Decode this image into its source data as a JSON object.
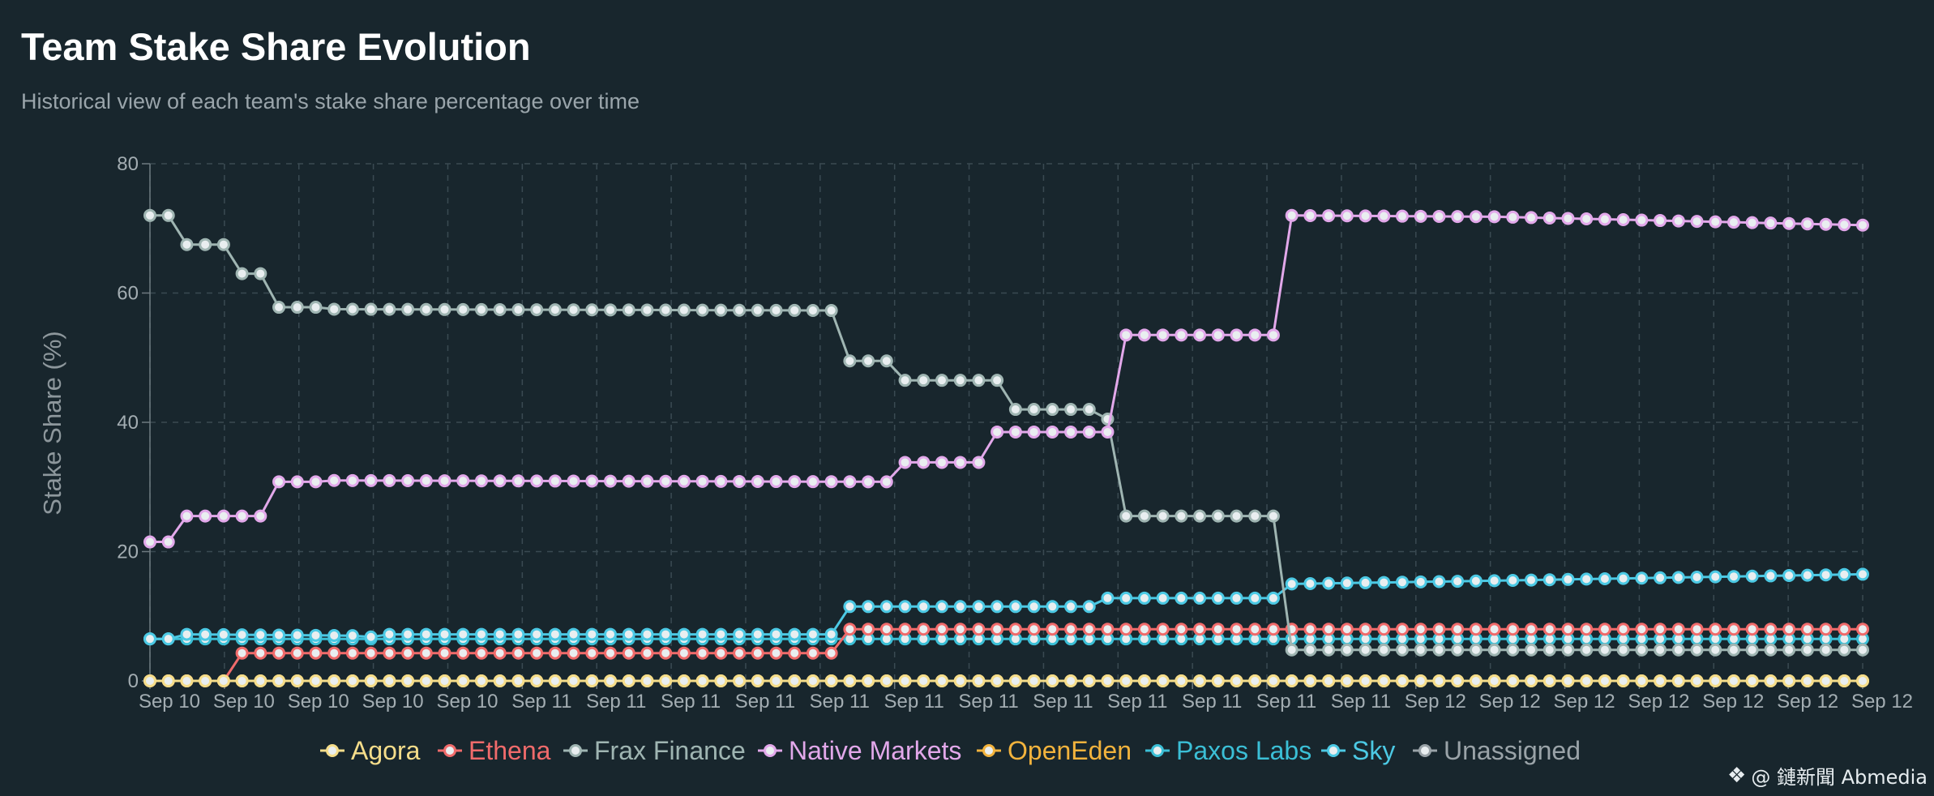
{
  "title": "Team Stake Share Evolution",
  "subtitle": "Historical view of each team's stake share percentage over time",
  "watermark": "@ 鏈新聞 Abmedia",
  "chart_data": {
    "type": "line",
    "ylabel": "Stake Share (%)",
    "xlabel": "",
    "ylim": [
      0,
      80
    ],
    "yticks": [
      0,
      20,
      40,
      60,
      80
    ],
    "x_tick_labels": [
      "Sep 10",
      "Sep 10",
      "Sep 10",
      "Sep 10",
      "Sep 10",
      "Sep 11",
      "Sep 11",
      "Sep 11",
      "Sep 11",
      "Sep 11",
      "Sep 11",
      "Sep 11",
      "Sep 11",
      "Sep 11",
      "Sep 11",
      "Sep 11",
      "Sep 11",
      "Sep 12",
      "Sep 12",
      "Sep 12",
      "Sep 12",
      "Sep 12",
      "Sep 12",
      "Sep 12"
    ],
    "grid": true,
    "legend_position": "bottom-center",
    "series": [
      {
        "name": "Agora",
        "color": "#f5dd8a",
        "values": [
          [
            0,
            0
          ],
          [
            93,
            0
          ]
        ]
      },
      {
        "name": "Ethena",
        "color": "#f06b6b",
        "values": [
          [
            0,
            0
          ],
          [
            4,
            0
          ],
          [
            5,
            4.3
          ],
          [
            37,
            4.3
          ],
          [
            38,
            8
          ],
          [
            93,
            8
          ]
        ]
      },
      {
        "name": "Frax Finance",
        "color": "#9fb5b2",
        "values": [
          [
            0,
            72
          ],
          [
            1,
            72
          ],
          [
            2,
            67.5
          ],
          [
            4,
            67.5
          ],
          [
            5,
            63
          ],
          [
            6,
            63
          ],
          [
            7,
            57.8
          ],
          [
            9,
            57.8
          ],
          [
            10,
            57.5
          ],
          [
            37,
            57.3
          ],
          [
            38,
            49.5
          ],
          [
            40,
            49.5
          ],
          [
            41,
            46.5
          ],
          [
            46,
            46.5
          ],
          [
            47,
            42
          ],
          [
            51,
            42
          ],
          [
            52,
            40.5
          ],
          [
            53,
            25.5
          ],
          [
            61,
            25.5
          ],
          [
            62,
            4.8
          ],
          [
            93,
            4.8
          ]
        ]
      },
      {
        "name": "Native Markets",
        "color": "#e2a8ea",
        "values": [
          [
            0,
            21.5
          ],
          [
            1,
            21.5
          ],
          [
            2,
            25.5
          ],
          [
            6,
            25.5
          ],
          [
            7,
            30.8
          ],
          [
            9,
            30.8
          ],
          [
            10,
            31
          ],
          [
            40,
            30.8
          ],
          [
            41,
            33.8
          ],
          [
            45,
            33.8
          ],
          [
            46,
            38.5
          ],
          [
            52,
            38.5
          ],
          [
            53,
            53.5
          ],
          [
            61,
            53.5
          ],
          [
            62,
            72
          ],
          [
            73,
            71.8
          ],
          [
            93,
            70.5
          ]
        ]
      },
      {
        "name": "OpenEden",
        "color": "#f2b33d",
        "values": [
          [
            0,
            0
          ],
          [
            93,
            0
          ]
        ]
      },
      {
        "name": "Paxos Labs",
        "color": "#3bbfd6",
        "values": [
          [
            0,
            6.5
          ],
          [
            93,
            6.5
          ]
        ]
      },
      {
        "name": "Sky",
        "color": "#4cc9e4",
        "values": [
          [
            0,
            6.5
          ],
          [
            1,
            6.5
          ],
          [
            2,
            7.2
          ],
          [
            11,
            7
          ],
          [
            12,
            6.8
          ],
          [
            13,
            7.2
          ],
          [
            37,
            7.2
          ],
          [
            38,
            11.5
          ],
          [
            51,
            11.5
          ],
          [
            52,
            12.8
          ],
          [
            61,
            12.8
          ],
          [
            62,
            15
          ],
          [
            73,
            15.5
          ],
          [
            93,
            16.5
          ]
        ]
      },
      {
        "name": "Unassigned",
        "color": "#9aa3a8",
        "values": [
          [
            0,
            0
          ],
          [
            93,
            0
          ]
        ]
      }
    ]
  }
}
